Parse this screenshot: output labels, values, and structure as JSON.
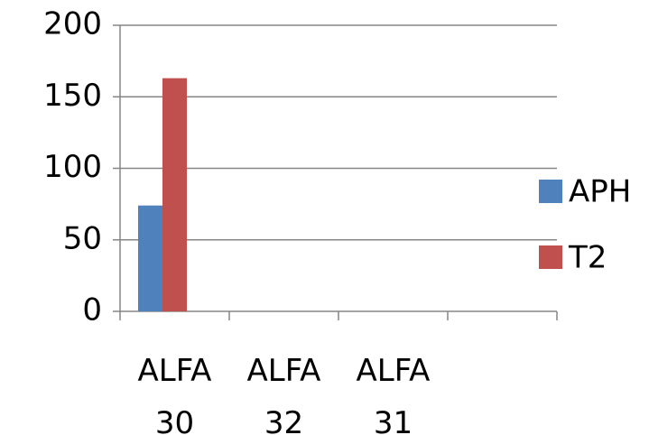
{
  "chart_data": {
    "type": "bar",
    "categories": [
      "ALFA 30",
      "ALFA 32",
      "ALFA 31",
      null
    ],
    "series": [
      {
        "name": "APH",
        "color": "#4f81bd",
        "values": [
          74,
          null,
          null,
          null
        ]
      },
      {
        "name": "T2",
        "color": "#c0504d",
        "values": [
          163,
          null,
          null,
          null
        ]
      }
    ],
    "ylim": [
      0,
      200
    ],
    "yticks": [
      0,
      50,
      100,
      150,
      200
    ],
    "grid": true,
    "legend": "right"
  }
}
